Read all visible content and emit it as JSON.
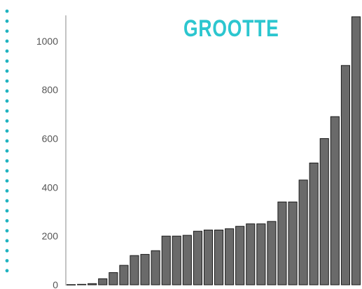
{
  "chart_data": {
    "type": "bar",
    "title": "GROOTTE",
    "xlabel": "",
    "ylabel": "",
    "ylim": [
      0,
      1100
    ],
    "yticks": [
      0,
      200,
      400,
      600,
      800,
      1000
    ],
    "grid": false,
    "legend": "none",
    "values": [
      1,
      2,
      5,
      25,
      50,
      80,
      120,
      125,
      140,
      200,
      200,
      203,
      220,
      225,
      225,
      230,
      240,
      250,
      250,
      260,
      340,
      340,
      430,
      500,
      600,
      690,
      900,
      1100
    ],
    "colors": {
      "bar": "#6a6a6a",
      "bar_edge": "#1a1a1a",
      "title": "#2cc6cf",
      "dots": "#1fb3c0"
    }
  }
}
